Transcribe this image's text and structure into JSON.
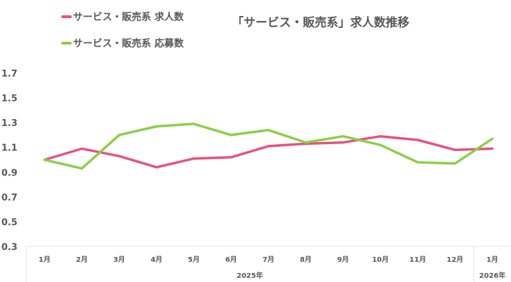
{
  "legend": {
    "items": [
      {
        "label": "サービス・販売系 求人数",
        "color": "#E9507E"
      },
      {
        "label": "サービス・販売系 応募数",
        "color": "#8BCF47"
      }
    ]
  },
  "title": "「サービス・販売系」求人数推移",
  "chart_data": {
    "type": "line",
    "title": "「サービス・販売系」求人数推移",
    "xlabel": "",
    "ylabel": "",
    "ylim": [
      0.3,
      1.7
    ],
    "yticks": [
      "1.7",
      "1.5",
      "1.3",
      "1.1",
      "0.9",
      "0.7",
      "0.5",
      "0.3"
    ],
    "grid": false,
    "legend_position": "top-left",
    "categories": [
      "1月",
      "2月",
      "3月",
      "4月",
      "5月",
      "6月",
      "7月",
      "8月",
      "9月",
      "10月",
      "11月",
      "12月",
      "1月"
    ],
    "category_groups": [
      {
        "label": "2025年",
        "span": [
          0,
          11
        ]
      },
      {
        "label": "2026年",
        "span": [
          12,
          12
        ]
      }
    ],
    "series": [
      {
        "name": "サービス・販売系 求人数",
        "color": "#E9507E",
        "values": [
          1.0,
          1.09,
          1.03,
          0.94,
          1.01,
          1.02,
          1.11,
          1.13,
          1.14,
          1.19,
          1.16,
          1.08,
          1.09
        ]
      },
      {
        "name": "サービス・販売系 応募数",
        "color": "#8BCF47",
        "values": [
          1.0,
          0.93,
          1.2,
          1.27,
          1.29,
          1.2,
          1.24,
          1.14,
          1.19,
          1.12,
          0.98,
          0.97,
          1.17
        ]
      }
    ]
  }
}
